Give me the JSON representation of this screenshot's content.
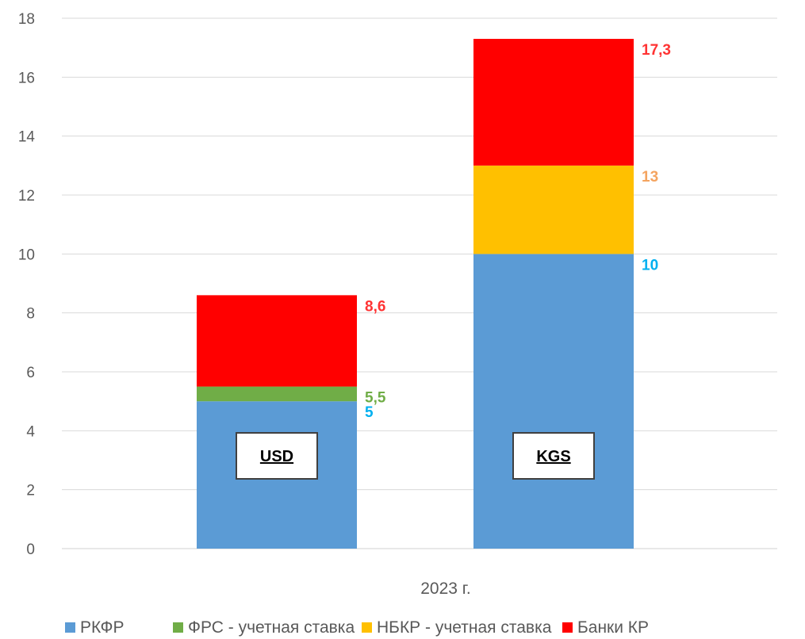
{
  "chart_data": {
    "type": "bar",
    "stacked": true,
    "title": "",
    "xlabel": "",
    "ylabel": "",
    "ylim": [
      0,
      18
    ],
    "yticks": [
      0,
      2,
      4,
      6,
      8,
      10,
      12,
      14,
      16,
      18
    ],
    "x_category_label": "2023 г.",
    "grid": true,
    "legend_position": "bottom",
    "bars": [
      {
        "label": "USD",
        "segments": [
          {
            "series": "РКФР",
            "value": 5
          },
          {
            "series": "ФРС - учетная ставка",
            "value": 0.5
          },
          {
            "series": "Банки КР",
            "value": 3.1
          }
        ],
        "cumulative_labels": [
          {
            "text": "5",
            "at": 5,
            "color": "#00b0f0"
          },
          {
            "text": "5,5",
            "at": 5.5,
            "color": "#70ad47"
          },
          {
            "text": "8,6",
            "at": 8.6,
            "color": "#ff3333"
          }
        ]
      },
      {
        "label": "KGS",
        "segments": [
          {
            "series": "РКФР",
            "value": 10
          },
          {
            "series": "НБКР - учетная ставка",
            "value": 3
          },
          {
            "series": "Банки КР",
            "value": 4.3
          }
        ],
        "cumulative_labels": [
          {
            "text": "10",
            "at": 10,
            "color": "#00b0f0"
          },
          {
            "text": "13",
            "at": 13,
            "color": "#f4a460"
          },
          {
            "text": "17,3",
            "at": 17.3,
            "color": "#ff3333"
          }
        ]
      }
    ],
    "series": [
      {
        "name": "РКФР",
        "color": "#5b9bd5"
      },
      {
        "name": "ФРС - учетная ставка",
        "color": "#70ad47"
      },
      {
        "name": "НБКР - учетная ставка",
        "color": "#ffc000"
      },
      {
        "name": "Банки КР",
        "color": "#ff0000"
      }
    ]
  }
}
